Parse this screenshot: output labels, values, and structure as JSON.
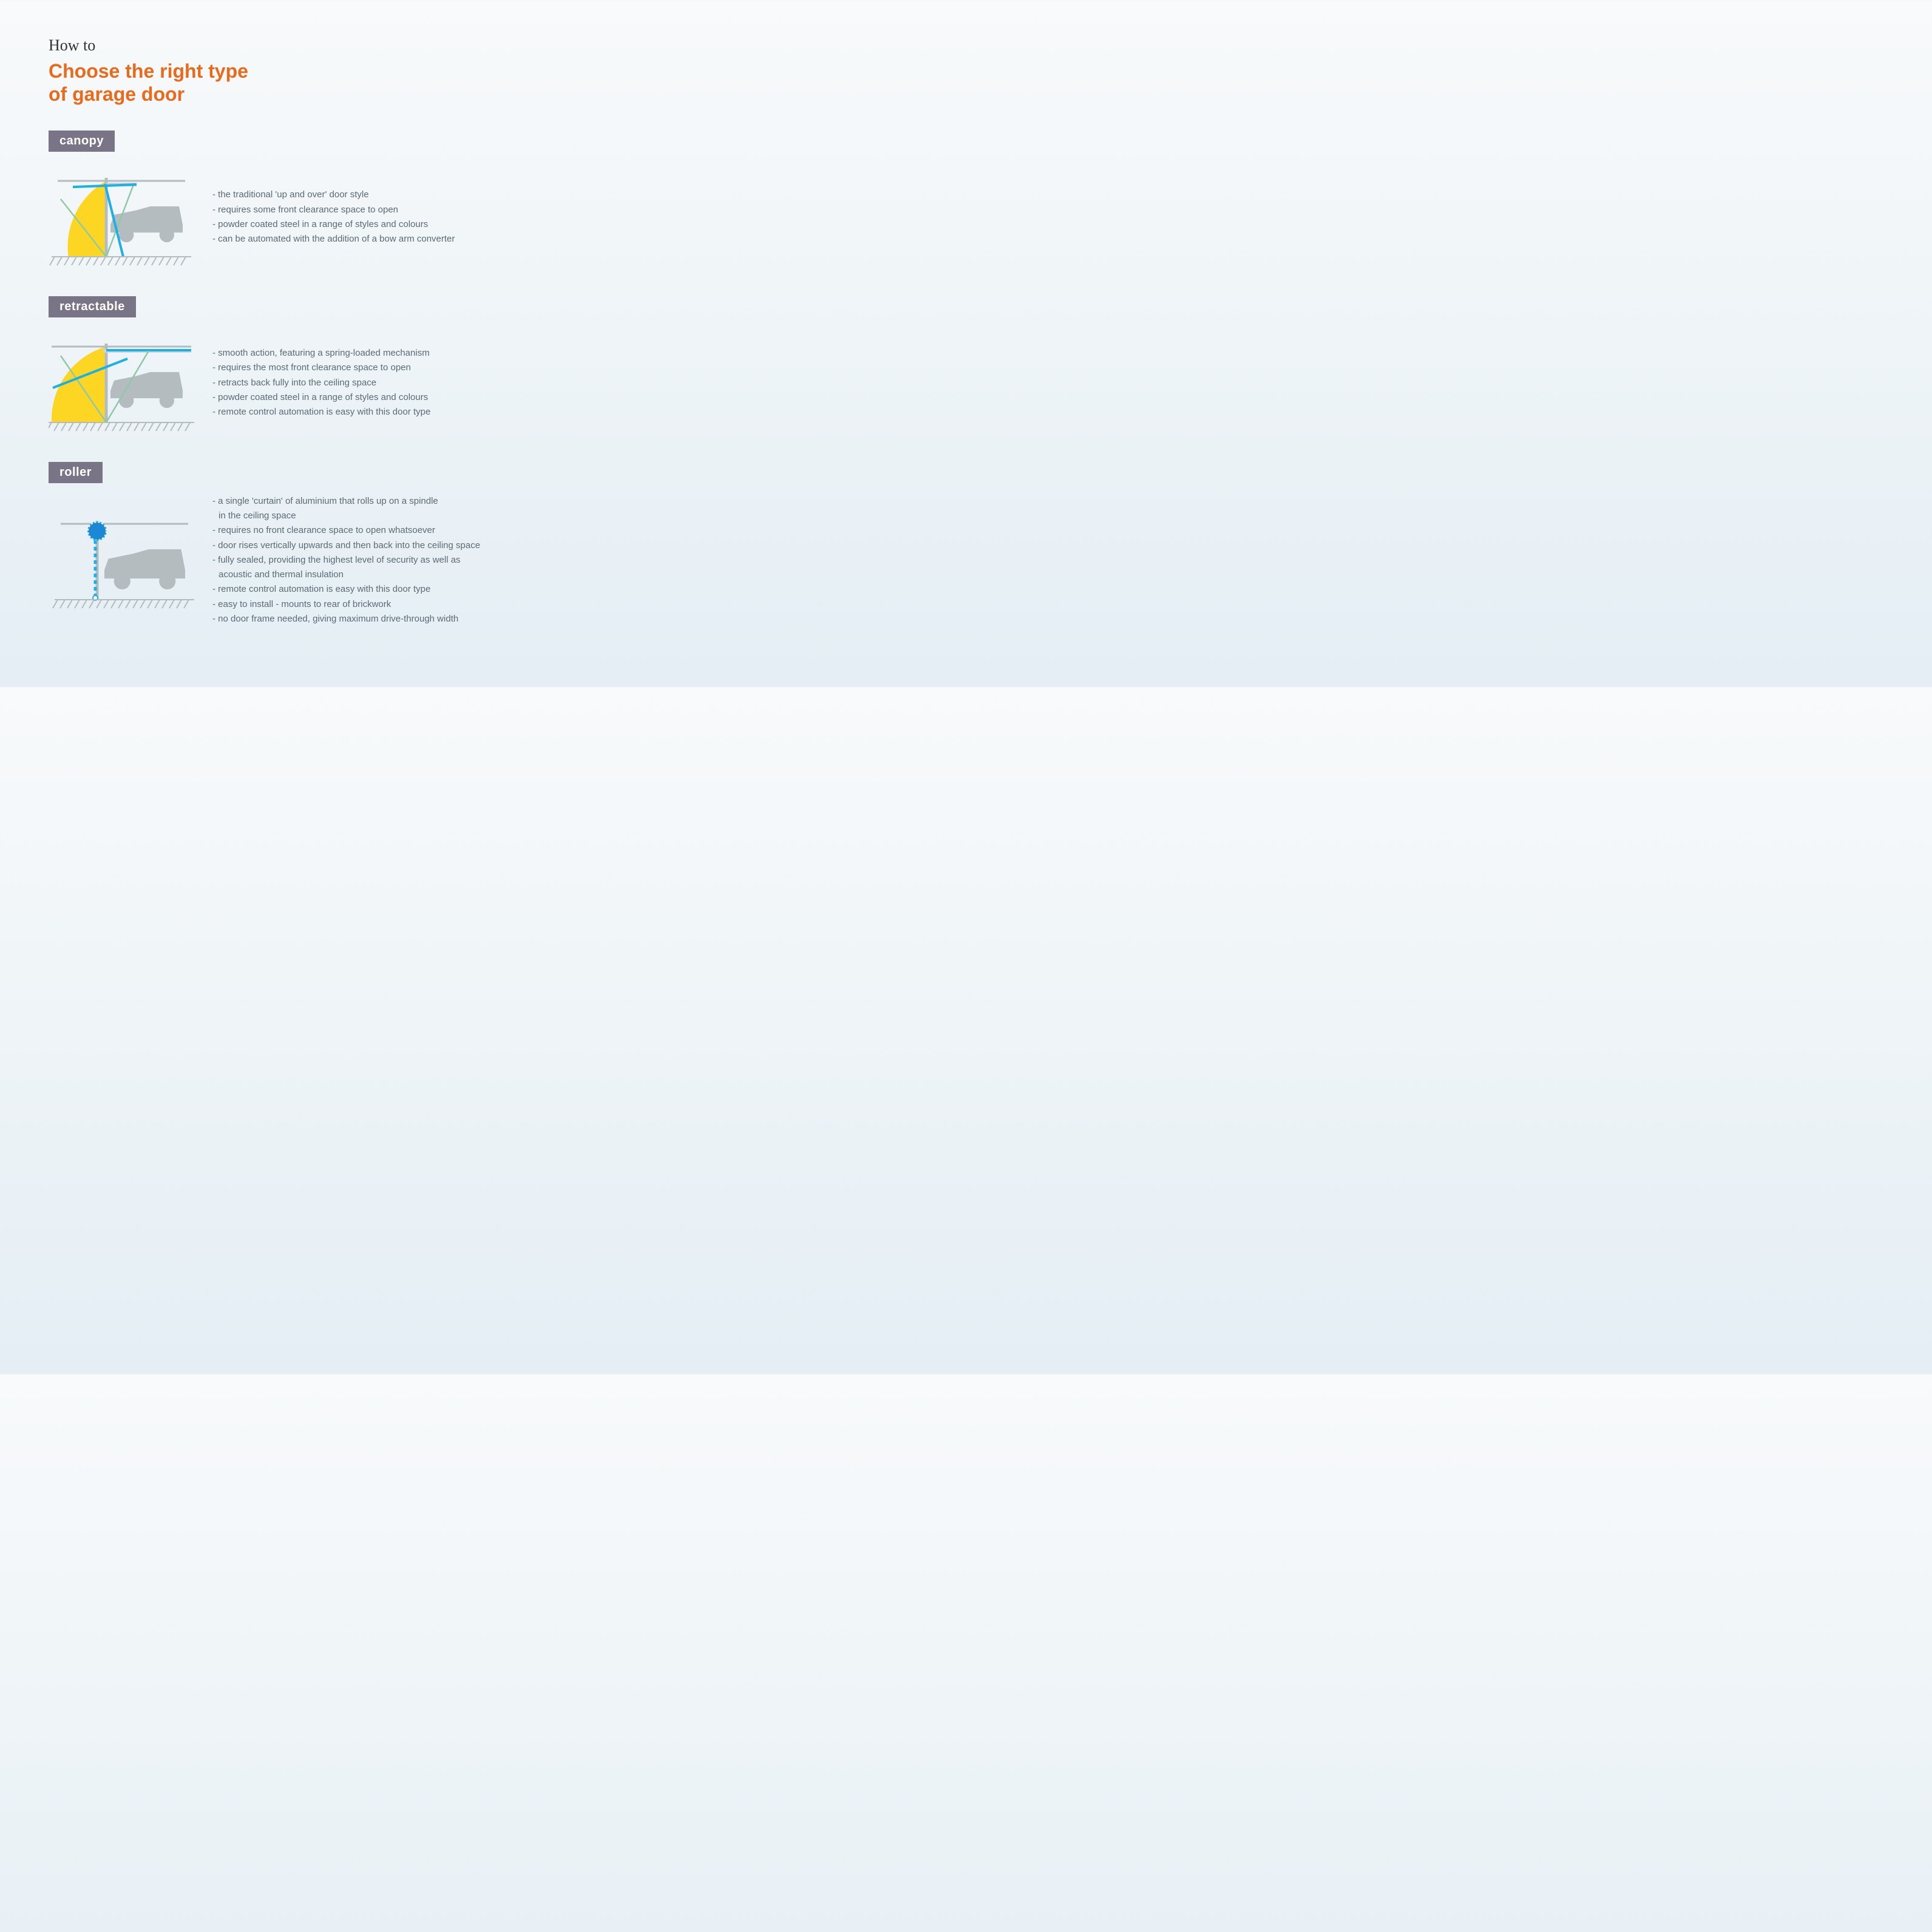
{
  "colors": {
    "pretitle": "#333333",
    "title": "#e96a1a",
    "badge_bg": "#7a7487",
    "badge_text": "#ffffff",
    "bullet_text": "#5b6a74",
    "car": "#b5bcc0",
    "ground_hatch": "#b5bcc0",
    "frame": "#b5bcc0",
    "swing_fill": "#fdd417",
    "door_line": "#1db0e4",
    "door_guide": "#8fc9a5",
    "roller_fill": "#1c87d4",
    "roller_stroke": "#1ea9e0",
    "track": "#d0d3d5"
  },
  "header": {
    "pretitle": "How to",
    "title_line1": "Choose the right type",
    "title_line2": "of garage door"
  },
  "sections": [
    {
      "id": "canopy",
      "label": "canopy",
      "diagram": "canopy",
      "bullets": [
        "- the traditional 'up and over' door style",
        "- requires some front clearance space to open",
        "- powder coated steel in a range of styles and colours",
        "- can be automated with the addition of a bow arm converter"
      ]
    },
    {
      "id": "retractable",
      "label": "retractable",
      "diagram": "retractable",
      "bullets": [
        "- smooth action, featuring a spring-loaded mechanism",
        "- requires the most front clearance space to open",
        "- retracts back fully into the ceiling space",
        "- powder coated steel in a range of styles and colours",
        "- remote control automation is easy with this door type"
      ]
    },
    {
      "id": "roller",
      "label": "roller",
      "diagram": "roller",
      "bullets": [
        "- a single 'curtain' of aluminium that rolls up on a spindle",
        "  in the ceiling space",
        "- requires no front clearance space to open whatsoever",
        "- door rises vertically upwards and then back into the ceiling space",
        "- fully sealed, providing the highest level of security as well as",
        "  acoustic and thermal insulation",
        "- remote control automation is easy with this door type",
        "- easy to install - mounts to rear of brickwork",
        "- no door frame needed, giving maximum drive-through width"
      ]
    }
  ],
  "fontsizes": {
    "pretitle": 26,
    "title": 32,
    "badge": 20,
    "bullet": 15
  }
}
